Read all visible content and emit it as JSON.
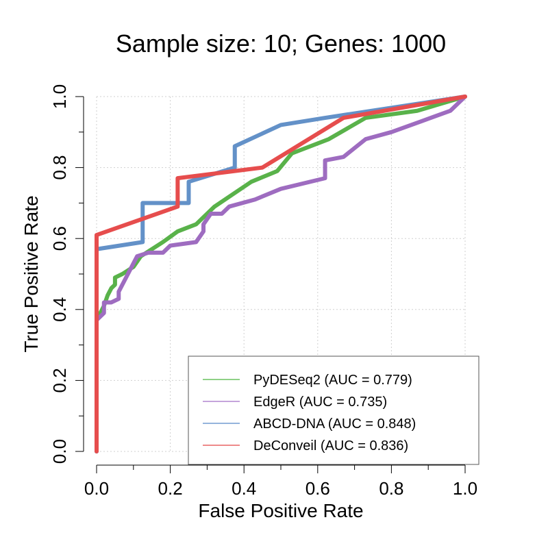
{
  "chart_data": {
    "type": "line",
    "title": "Sample size: 10; Genes: 1000",
    "xlabel": "False Positive Rate",
    "ylabel": "True Positive Rate",
    "xlim": [
      0,
      1
    ],
    "ylim": [
      0,
      1
    ],
    "xticks": [
      "0.0",
      "0.2",
      "0.4",
      "0.6",
      "0.8",
      "1.0"
    ],
    "yticks": [
      "0.0",
      "0.2",
      "0.4",
      "0.6",
      "0.8",
      "1.0"
    ],
    "grid": true,
    "legend_position": "bottom-right",
    "series": [
      {
        "name": "PyDESeq2 (AUC = 0.779)",
        "color": "#59b24a",
        "legend_color": "#8fd186",
        "x": [
          0,
          0,
          0.01,
          0.02,
          0.03,
          0.04,
          0.05,
          0.05,
          0.07,
          0.1,
          0.12,
          0.15,
          0.18,
          0.22,
          0.27,
          0.32,
          0.42,
          0.49,
          0.53,
          0.63,
          0.73,
          0.87,
          1.0
        ],
        "y": [
          0,
          0.37,
          0.39,
          0.41,
          0.44,
          0.46,
          0.47,
          0.49,
          0.5,
          0.52,
          0.55,
          0.57,
          0.59,
          0.62,
          0.64,
          0.69,
          0.76,
          0.79,
          0.84,
          0.88,
          0.94,
          0.96,
          1.0
        ]
      },
      {
        "name": "EdgeR (AUC = 0.735)",
        "color": "#9e6cc0",
        "legend_color": "#c5a4dc",
        "x": [
          0,
          0,
          0.02,
          0.02,
          0.04,
          0.06,
          0.06,
          0.11,
          0.14,
          0.18,
          0.2,
          0.27,
          0.29,
          0.29,
          0.31,
          0.34,
          0.36,
          0.43,
          0.5,
          0.62,
          0.62,
          0.67,
          0.73,
          0.8,
          0.88,
          0.96,
          1.0
        ],
        "y": [
          0,
          0.37,
          0.39,
          0.42,
          0.42,
          0.43,
          0.45,
          0.55,
          0.56,
          0.56,
          0.58,
          0.59,
          0.62,
          0.64,
          0.67,
          0.67,
          0.69,
          0.71,
          0.74,
          0.77,
          0.82,
          0.83,
          0.88,
          0.9,
          0.93,
          0.96,
          1.0
        ]
      },
      {
        "name": "ABCD-DNA (AUC = 0.848)",
        "color": "#6391c8",
        "legend_color": "#94b4dc",
        "x": [
          0,
          0,
          0,
          0.125,
          0.125,
          0.25,
          0.25,
          0.375,
          0.375,
          0.5,
          0.62,
          1.0
        ],
        "y": [
          0,
          0.57,
          0.57,
          0.59,
          0.7,
          0.7,
          0.76,
          0.8,
          0.86,
          0.92,
          0.94,
          1.0
        ]
      },
      {
        "name": "DeConveil (AUC = 0.836)",
        "color": "#e64d4d",
        "legend_color": "#ee8a8a",
        "x": [
          0,
          0,
          0.22,
          0.22,
          0.45,
          0.67,
          1.0
        ],
        "y": [
          0,
          0.61,
          0.69,
          0.77,
          0.8,
          0.94,
          1.0
        ]
      }
    ]
  }
}
